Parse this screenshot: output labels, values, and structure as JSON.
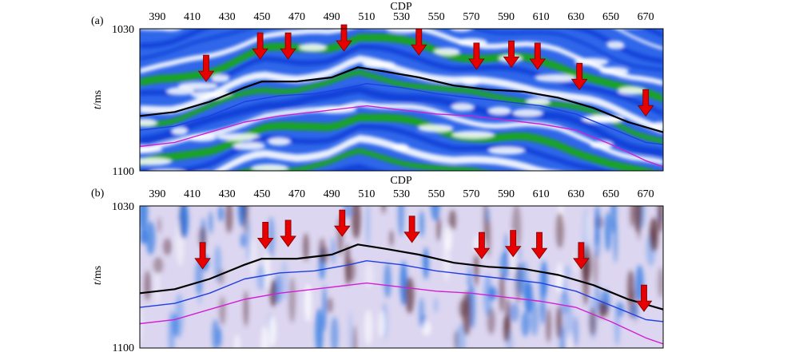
{
  "panels": [
    {
      "letter": "(a)",
      "xlabel": "CDP",
      "ylabel": "t/ms",
      "ylabel_italic": "t",
      "ylabel_unit": "/ms",
      "y_top_label": "1030",
      "y_bottom_label": "1100",
      "x_ticks": [
        "390",
        "410",
        "430",
        "450",
        "470",
        "490",
        "510",
        "530",
        "550",
        "570",
        "590",
        "610",
        "630",
        "650",
        "670"
      ],
      "palette": {
        "background": "#ffffff",
        "strong": "#0b3fd6",
        "mid": "#3a78f0",
        "positive": "#1fb51f",
        "positive_dark": "#0c7a0c"
      }
    },
    {
      "letter": "(b)",
      "xlabel": "CDP",
      "ylabel": "t/ms",
      "ylabel_italic": "t",
      "ylabel_unit": "/ms",
      "y_top_label": "1030",
      "y_bottom_label": "1100",
      "x_ticks": [
        "390",
        "410",
        "430",
        "450",
        "470",
        "490",
        "510",
        "530",
        "550",
        "570",
        "590",
        "610",
        "630",
        "650",
        "670"
      ],
      "palette": {
        "background": "#d9d4f0",
        "strong": "#1f6fe0",
        "mid": "#7fa8ee",
        "positive": "#5a2f3a",
        "positive_dark": "#3b1a22"
      }
    }
  ],
  "x_range": [
    380,
    680
  ],
  "y_range": [
    1030,
    1100
  ],
  "horizons": {
    "black": {
      "color": "#000000",
      "points": [
        [
          380,
          1073
        ],
        [
          400,
          1071
        ],
        [
          420,
          1066
        ],
        [
          440,
          1059
        ],
        [
          450,
          1056
        ],
        [
          470,
          1056
        ],
        [
          490,
          1054
        ],
        [
          505,
          1049
        ],
        [
          520,
          1051
        ],
        [
          540,
          1054
        ],
        [
          560,
          1058
        ],
        [
          580,
          1060
        ],
        [
          600,
          1061
        ],
        [
          620,
          1064
        ],
        [
          640,
          1069
        ],
        [
          660,
          1076
        ],
        [
          680,
          1081
        ]
      ]
    },
    "blue": {
      "color": "#1f3fe0",
      "points": [
        [
          380,
          1080
        ],
        [
          400,
          1078
        ],
        [
          420,
          1073
        ],
        [
          440,
          1066
        ],
        [
          460,
          1063
        ],
        [
          480,
          1062
        ],
        [
          500,
          1059
        ],
        [
          510,
          1057
        ],
        [
          530,
          1059
        ],
        [
          550,
          1062
        ],
        [
          570,
          1064
        ],
        [
          590,
          1066
        ],
        [
          610,
          1068
        ],
        [
          630,
          1072
        ],
        [
          650,
          1079
        ],
        [
          670,
          1086
        ],
        [
          680,
          1087
        ]
      ]
    },
    "magenta": {
      "color": "#d21fd2",
      "points": [
        [
          380,
          1088
        ],
        [
          400,
          1086
        ],
        [
          420,
          1081
        ],
        [
          440,
          1076
        ],
        [
          460,
          1073
        ],
        [
          480,
          1071
        ],
        [
          500,
          1069
        ],
        [
          510,
          1068
        ],
        [
          530,
          1070
        ],
        [
          550,
          1072
        ],
        [
          570,
          1073
        ],
        [
          590,
          1075
        ],
        [
          610,
          1077
        ],
        [
          630,
          1080
        ],
        [
          650,
          1087
        ],
        [
          670,
          1095
        ],
        [
          680,
          1098
        ]
      ]
    }
  },
  "arrows_a": [
    [
      418,
      1056
    ],
    [
      449,
      1045
    ],
    [
      465,
      1045
    ],
    [
      497,
      1041
    ],
    [
      540,
      1043
    ],
    [
      573,
      1050
    ],
    [
      593,
      1049
    ],
    [
      608,
      1050
    ],
    [
      632,
      1060
    ],
    [
      670,
      1073
    ]
  ],
  "arrows_b": [
    [
      416,
      1061
    ],
    [
      452,
      1051
    ],
    [
      465,
      1050
    ],
    [
      496,
      1045
    ],
    [
      536,
      1048
    ],
    [
      576,
      1056
    ],
    [
      594,
      1055
    ],
    [
      609,
      1056
    ],
    [
      633,
      1061
    ],
    [
      669,
      1082
    ]
  ],
  "arrow_color": "#e60000"
}
